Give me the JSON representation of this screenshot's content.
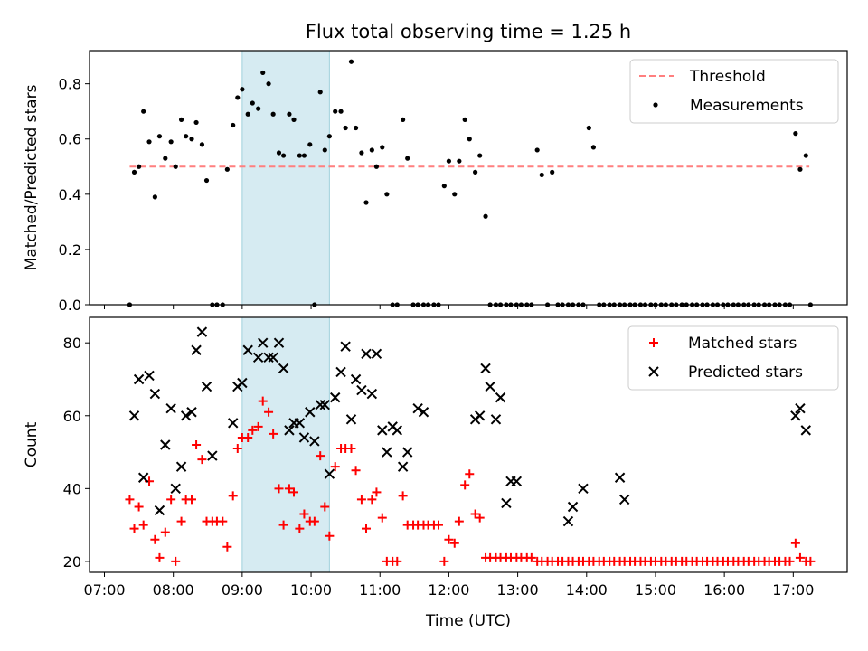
{
  "title": "Flux total observing time = 1.25 h",
  "chart_data": [
    {
      "type": "scatter",
      "panel": "top",
      "ylabel": "Matched/Predicted stars",
      "xlabel": "",
      "ylim": [
        0,
        0.92
      ],
      "yticks": [
        0.0,
        0.2,
        0.4,
        0.6,
        0.8
      ],
      "ytick_labels": [
        "0.0",
        "0.2",
        "0.4",
        "0.6",
        "0.8"
      ],
      "xlim": [
        "06:47",
        "17:47"
      ],
      "xticks": [
        "07:00",
        "08:00",
        "09:00",
        "10:00",
        "11:00",
        "12:00",
        "13:00",
        "14:00",
        "15:00",
        "16:00",
        "17:00"
      ],
      "shaded_interval": [
        "09:00",
        "10:16"
      ],
      "legend_position": "upper right",
      "series": [
        {
          "name": "Threshold",
          "style": "dashed-line",
          "color": "#ff7f7f",
          "x": [
            "07:22",
            "17:14"
          ],
          "y": [
            0.5,
            0.5
          ]
        },
        {
          "name": "Measurements",
          "style": "dot",
          "color": "#000000",
          "x": [
            "07:22",
            "07:26",
            "07:30",
            "07:34",
            "07:39",
            "07:44",
            "07:48",
            "07:53",
            "07:58",
            "08:02",
            "08:07",
            "08:11",
            "08:16",
            "08:20",
            "08:25",
            "08:29",
            "08:34",
            "08:38",
            "08:43",
            "08:47",
            "08:52",
            "08:56",
            "09:00",
            "09:05",
            "09:09",
            "09:14",
            "09:18",
            "09:23",
            "09:27",
            "09:32",
            "09:36",
            "09:41",
            "09:45",
            "09:50",
            "09:54",
            "09:59",
            "10:03",
            "10:08",
            "10:12",
            "10:16",
            "10:21",
            "10:26",
            "10:30",
            "10:35",
            "10:39",
            "10:44",
            "10:48",
            "10:53",
            "10:57",
            "11:02",
            "11:06",
            "11:11",
            "11:15",
            "11:20",
            "11:24",
            "11:29",
            "11:33",
            "11:38",
            "11:42",
            "11:47",
            "11:51",
            "11:56",
            "12:00",
            "12:05",
            "12:09",
            "12:14",
            "12:18",
            "12:23",
            "12:27",
            "12:32",
            "12:36",
            "12:41",
            "12:45",
            "12:50",
            "12:54",
            "12:59",
            "13:03",
            "13:08",
            "13:12",
            "13:17",
            "13:21",
            "13:26",
            "13:30",
            "13:35",
            "13:39",
            "13:44",
            "13:48",
            "13:53",
            "13:57",
            "14:02",
            "14:06",
            "14:11",
            "14:15",
            "14:20",
            "14:24",
            "14:29",
            "14:33",
            "14:38",
            "14:42",
            "14:47",
            "14:51",
            "14:56",
            "15:00",
            "15:05",
            "15:09",
            "15:14",
            "15:18",
            "15:23",
            "15:27",
            "15:32",
            "15:36",
            "15:41",
            "15:45",
            "15:50",
            "15:54",
            "15:59",
            "16:03",
            "16:08",
            "16:12",
            "16:17",
            "16:21",
            "16:26",
            "16:30",
            "16:35",
            "16:39",
            "16:44",
            "16:48",
            "16:53",
            "16:57",
            "17:02",
            "17:06",
            "17:11",
            "17:15"
          ],
          "y": [
            0.0,
            0.48,
            0.5,
            0.7,
            0.59,
            0.39,
            0.61,
            0.53,
            0.59,
            0.5,
            0.67,
            0.61,
            0.6,
            0.66,
            0.58,
            0.45,
            0.0,
            0.0,
            0.0,
            0.49,
            0.65,
            0.75,
            0.78,
            0.69,
            0.73,
            0.71,
            0.84,
            0.8,
            0.69,
            0.55,
            0.54,
            0.69,
            0.67,
            0.54,
            0.54,
            0.58,
            0.0,
            0.77,
            0.56,
            0.61,
            0.7,
            0.7,
            0.64,
            0.88,
            0.64,
            0.55,
            0.37,
            0.56,
            0.5,
            0.57,
            0.4,
            0.0,
            0.0,
            0.67,
            0.53,
            0.0,
            0.0,
            0.0,
            0.0,
            0.0,
            0.0,
            0.43,
            0.52,
            0.4,
            0.52,
            0.67,
            0.6,
            0.48,
            0.54,
            0.32,
            0.0,
            0.0,
            0.0,
            0.0,
            0.0,
            0.0,
            0.0,
            0.0,
            0.0,
            0.56,
            0.47,
            0.0,
            0.48,
            0.0,
            0.0,
            0.0,
            0.0,
            0.0,
            0.0,
            0.64,
            0.57,
            0.0,
            0.0,
            0.0,
            0.0,
            0.0,
            0.0,
            0.0,
            0.0,
            0.0,
            0.0,
            0.0,
            0.0,
            0.0,
            0.0,
            0.0,
            0.0,
            0.0,
            0.0,
            0.0,
            0.0,
            0.0,
            0.0,
            0.0,
            0.0,
            0.0,
            0.0,
            0.0,
            0.0,
            0.0,
            0.0,
            0.0,
            0.0,
            0.0,
            0.0,
            0.0,
            0.0,
            0.0,
            0.0,
            0.62,
            0.49,
            0.54,
            0.0
          ]
        }
      ]
    },
    {
      "type": "scatter",
      "panel": "bottom",
      "ylabel": "Count",
      "xlabel": "Time (UTC)",
      "ylim": [
        17,
        87
      ],
      "yticks": [
        20,
        40,
        60,
        80
      ],
      "ytick_labels": [
        "20",
        "40",
        "60",
        "80"
      ],
      "xlim": [
        "06:47",
        "17:47"
      ],
      "xticks": [
        "07:00",
        "08:00",
        "09:00",
        "10:00",
        "11:00",
        "12:00",
        "13:00",
        "14:00",
        "15:00",
        "16:00",
        "17:00"
      ],
      "xtick_labels": [
        "07:00",
        "08:00",
        "09:00",
        "10:00",
        "11:00",
        "12:00",
        "13:00",
        "14:00",
        "15:00",
        "16:00",
        "17:00"
      ],
      "shaded_interval": [
        "09:00",
        "10:16"
      ],
      "legend_position": "upper right",
      "series": [
        {
          "name": "Matched stars",
          "marker": "plus",
          "color": "#ff0000",
          "x": [
            "07:22",
            "07:26",
            "07:30",
            "07:34",
            "07:39",
            "07:44",
            "07:48",
            "07:53",
            "07:58",
            "08:02",
            "08:07",
            "08:11",
            "08:16",
            "08:20",
            "08:25",
            "08:29",
            "08:34",
            "08:38",
            "08:43",
            "08:47",
            "08:52",
            "08:56",
            "09:00",
            "09:05",
            "09:09",
            "09:14",
            "09:18",
            "09:23",
            "09:27",
            "09:32",
            "09:36",
            "09:41",
            "09:45",
            "09:50",
            "09:54",
            "09:59",
            "10:03",
            "10:08",
            "10:12",
            "10:16",
            "10:21",
            "10:26",
            "10:30",
            "10:35",
            "10:39",
            "10:44",
            "10:48",
            "10:53",
            "10:57",
            "11:02",
            "11:06",
            "11:11",
            "11:15",
            "11:20",
            "11:24",
            "11:29",
            "11:33",
            "11:38",
            "11:42",
            "11:47",
            "11:51",
            "11:56",
            "12:00",
            "12:05",
            "12:09",
            "12:14",
            "12:18",
            "12:23",
            "12:27",
            "12:32",
            "12:36",
            "12:41",
            "12:45",
            "12:50",
            "12:54",
            "12:59",
            "13:03",
            "13:08",
            "13:12",
            "13:17",
            "13:21",
            "13:26",
            "13:30",
            "13:35",
            "13:39",
            "13:44",
            "13:48",
            "13:53",
            "13:57",
            "14:02",
            "14:06",
            "14:11",
            "14:15",
            "14:20",
            "14:24",
            "14:29",
            "14:33",
            "14:38",
            "14:42",
            "14:47",
            "14:51",
            "14:56",
            "15:00",
            "15:05",
            "15:09",
            "15:14",
            "15:18",
            "15:23",
            "15:27",
            "15:32",
            "15:36",
            "15:41",
            "15:45",
            "15:50",
            "15:54",
            "15:59",
            "16:03",
            "16:08",
            "16:12",
            "16:17",
            "16:21",
            "16:26",
            "16:30",
            "16:35",
            "16:39",
            "16:44",
            "16:48",
            "16:53",
            "16:57",
            "17:02",
            "17:06",
            "17:11",
            "17:15"
          ],
          "y": [
            37,
            29,
            35,
            30,
            42,
            26,
            21,
            28,
            37,
            20,
            31,
            37,
            37,
            52,
            48,
            31,
            31,
            31,
            31,
            24,
            38,
            51,
            54,
            54,
            56,
            57,
            64,
            61,
            55,
            40,
            30,
            40,
            39,
            29,
            33,
            31,
            31,
            49,
            35,
            27,
            46,
            51,
            51,
            51,
            45,
            37,
            29,
            37,
            39,
            32,
            20,
            20,
            20,
            38,
            30,
            30,
            30,
            30,
            30,
            30,
            30,
            20,
            26,
            25,
            31,
            41,
            44,
            33,
            32,
            21,
            21,
            21,
            21,
            21,
            21,
            21,
            21,
            21,
            21,
            20,
            20,
            20,
            20,
            20,
            20,
            20,
            20,
            20,
            20,
            20,
            20,
            20,
            20,
            20,
            20,
            20,
            20,
            20,
            20,
            20,
            20,
            20,
            20,
            20,
            20,
            20,
            20,
            20,
            20,
            20,
            20,
            20,
            20,
            20,
            20,
            20,
            20,
            20,
            20,
            20,
            20,
            20,
            20,
            20,
            20,
            20,
            20,
            20,
            20,
            25,
            21,
            20,
            20
          ]
        },
        {
          "name": "Predicted stars",
          "marker": "x",
          "color": "#000000",
          "x": [
            "07:26",
            "07:30",
            "07:34",
            "07:39",
            "07:44",
            "07:48",
            "07:53",
            "07:58",
            "08:02",
            "08:07",
            "08:11",
            "08:16",
            "08:20",
            "08:25",
            "08:29",
            "08:34",
            "08:52",
            "08:56",
            "09:00",
            "09:05",
            "09:14",
            "09:18",
            "09:23",
            "09:27",
            "09:32",
            "09:36",
            "09:41",
            "09:45",
            "09:50",
            "09:54",
            "09:59",
            "10:03",
            "10:08",
            "10:12",
            "10:16",
            "10:21",
            "10:26",
            "10:30",
            "10:35",
            "10:39",
            "10:44",
            "10:48",
            "10:53",
            "10:57",
            "11:02",
            "11:06",
            "11:11",
            "11:15",
            "11:20",
            "11:24",
            "11:33",
            "11:38",
            "12:23",
            "12:27",
            "12:32",
            "12:36",
            "12:41",
            "12:45",
            "12:50",
            "12:54",
            "12:59",
            "13:44",
            "13:48",
            "13:57",
            "14:29",
            "14:33",
            "17:02",
            "17:06",
            "17:11"
          ],
          "y": [
            60,
            70,
            43,
            71,
            66,
            34,
            52,
            62,
            40,
            46,
            60,
            61,
            78,
            83,
            68,
            49,
            58,
            68,
            69,
            78,
            76,
            80,
            76,
            76,
            80,
            73,
            56,
            58,
            58,
            54,
            61,
            53,
            63,
            63,
            44,
            65,
            72,
            79,
            59,
            70,
            67,
            77,
            66,
            77,
            56,
            50,
            57,
            56,
            46,
            50,
            62,
            61,
            59,
            60,
            73,
            68,
            59,
            65,
            36,
            42,
            42,
            31,
            35,
            40,
            43,
            37,
            60,
            62,
            56
          ]
        }
      ]
    }
  ]
}
